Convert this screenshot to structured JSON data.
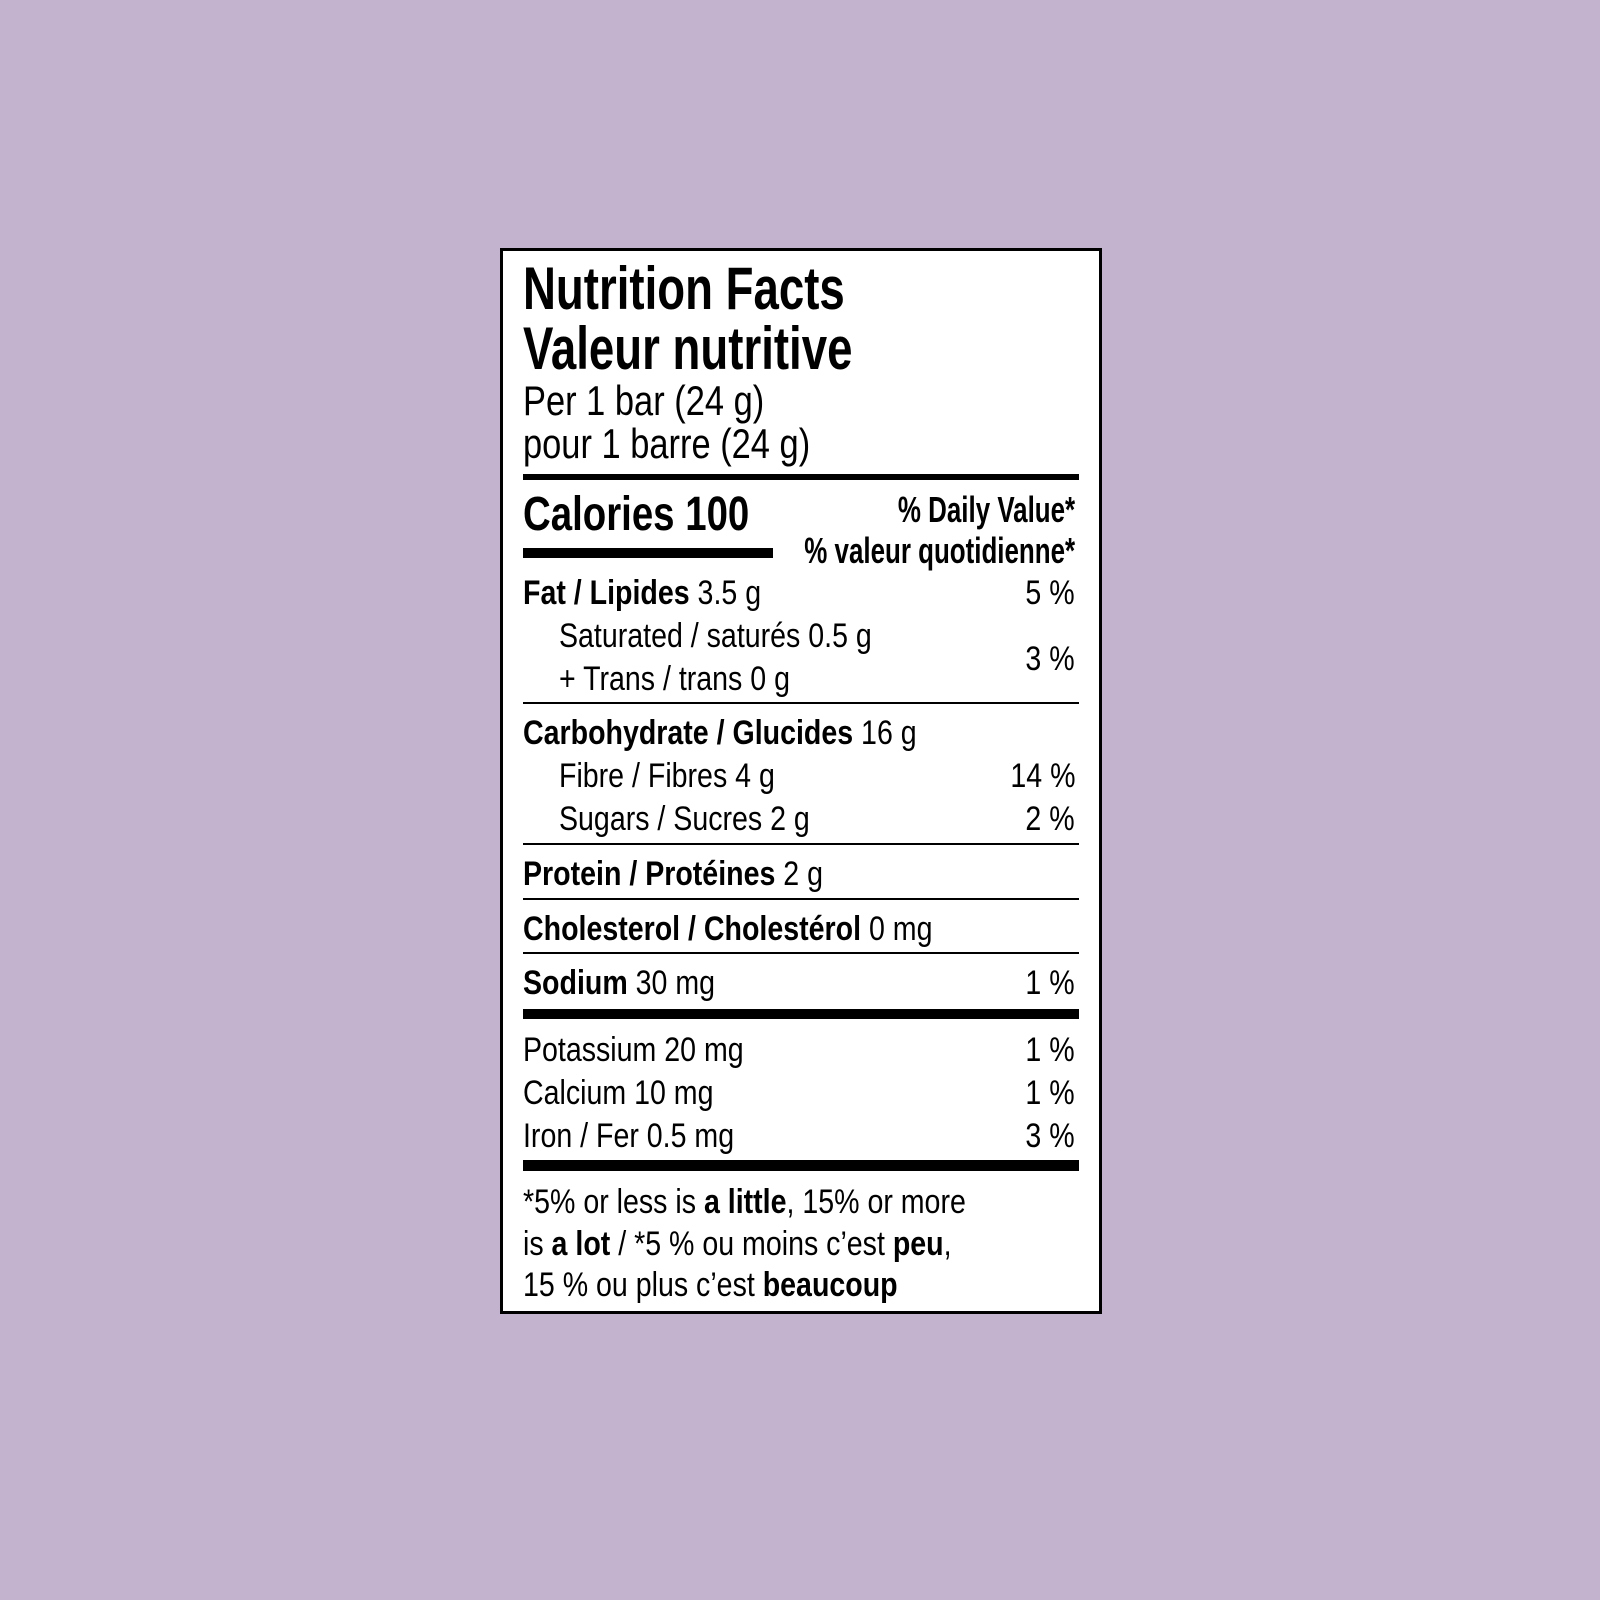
{
  "colors": {
    "background": "#c4b3cf",
    "label_background": "#ffffff",
    "ink": "#000000"
  },
  "title_en": "Nutrition Facts",
  "title_fr": "Valeur nutritive",
  "serving_en": "Per 1 bar (24 g)",
  "serving_fr": "pour 1 barre (24 g)",
  "calories": "Calories 100",
  "daily_value_en": "% Daily Value*",
  "daily_value_fr": "% valeur quotidienne*",
  "fat": {
    "label": "Fat / Lipides",
    "amount": " 3.5 g",
    "dv": "5 %"
  },
  "saturated": {
    "label": "Saturated / saturés 0.5 g"
  },
  "trans": {
    "label": "+ Trans / trans 0 g",
    "dv": "3 %"
  },
  "carb": {
    "label": "Carbohydrate / Glucides",
    "amount": " 16 g"
  },
  "fibre": {
    "label": "Fibre / Fibres 4 g",
    "dv": "14 %"
  },
  "sugars": {
    "label": "Sugars / Sucres 2 g",
    "dv": "2 %"
  },
  "protein": {
    "label": "Protein / Protéines",
    "amount": " 2 g"
  },
  "cholesterol": {
    "label": "Cholesterol / Cholestérol",
    "amount": " 0 mg"
  },
  "sodium": {
    "label": "Sodium",
    "amount": " 30 mg",
    "dv": "1 %"
  },
  "potassium": {
    "label": "Potassium 20 mg",
    "dv": "1 %"
  },
  "calcium": {
    "label": "Calcium 10 mg",
    "dv": "1 %"
  },
  "iron": {
    "label": "Iron / Fer 0.5 mg",
    "dv": "3 %"
  },
  "footnote": {
    "l1a": "*5% or less is ",
    "l1b": "a little",
    "l1c": ", 15% or more",
    "l2a": "is ",
    "l2b": "a lot",
    "l2c": " / *5 % ou moins c’est ",
    "l2d": "peu",
    "l2e": ",",
    "l3a": "15 % ou plus c’est ",
    "l3b": "beaucoup"
  }
}
